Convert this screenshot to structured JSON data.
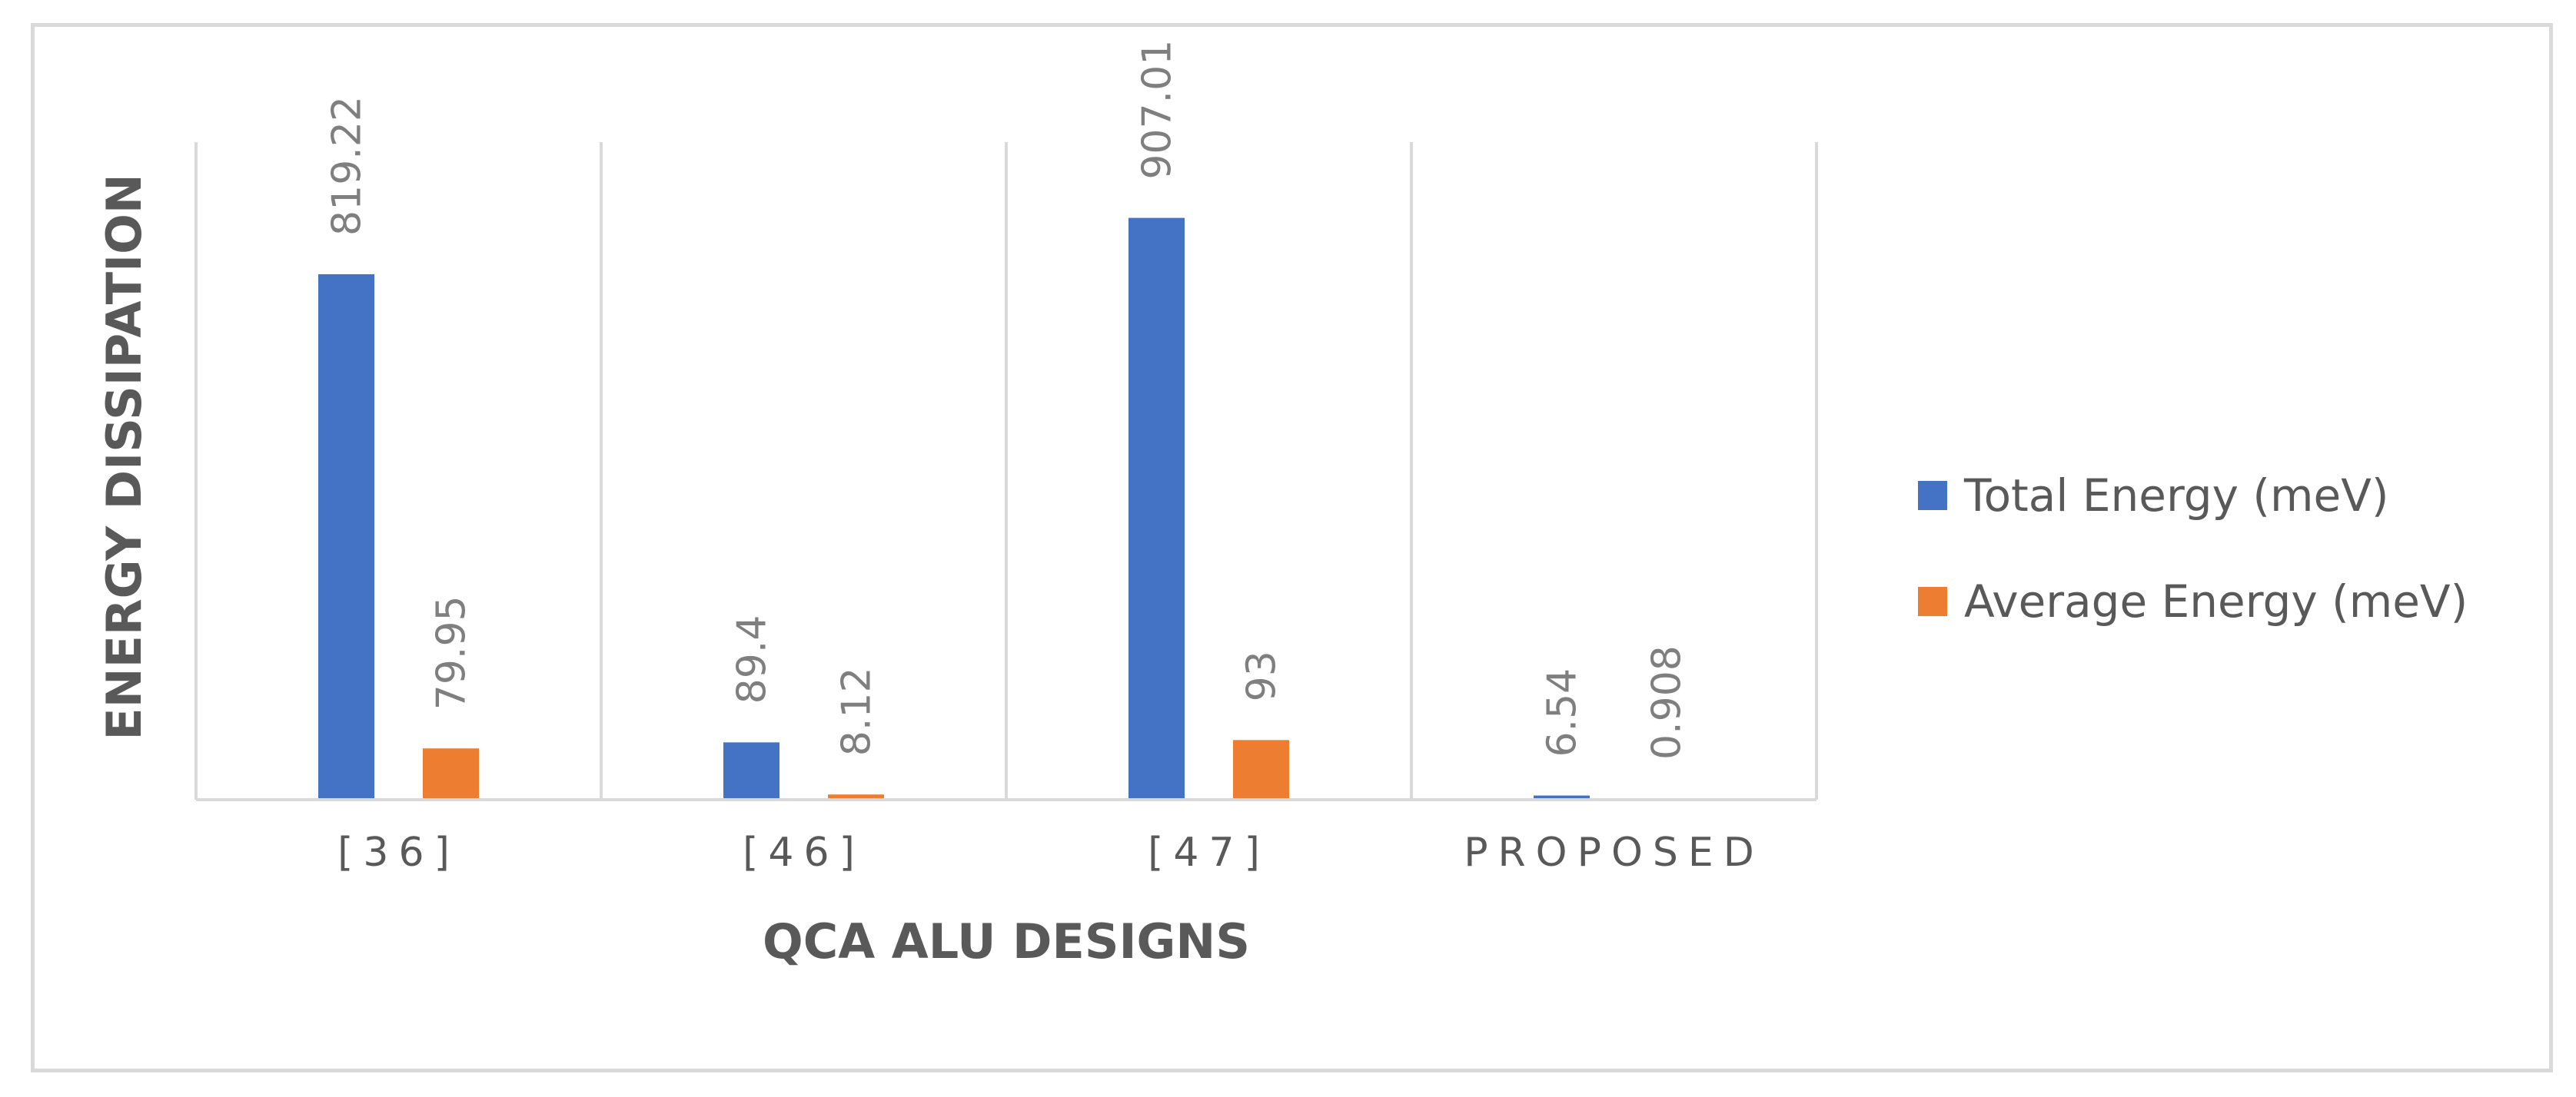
{
  "chart_data": {
    "type": "bar",
    "title": "",
    "xlabel": "QCA ALU DESIGNS",
    "ylabel": "ENERGY DISSIPATION",
    "categories": [
      "[36]",
      "[46]",
      "[47]",
      "PROPOSED"
    ],
    "series": [
      {
        "name": "Total Energy (meV)",
        "color": "#4472c4",
        "values": [
          819.22,
          89.4,
          907.01,
          6.54
        ],
        "labels": [
          "819.22",
          "89.4",
          "907.01",
          "6.54"
        ]
      },
      {
        "name": "Average Energy (meV)",
        "color": "#ed7d31",
        "values": [
          79.95,
          8.12,
          93,
          0.908
        ],
        "labels": [
          "79.95",
          "8.12",
          "93",
          "0.908"
        ]
      }
    ],
    "ylim": [
      0,
      1000
    ],
    "grid": "vertical separators between categories",
    "legend_position": "right"
  }
}
